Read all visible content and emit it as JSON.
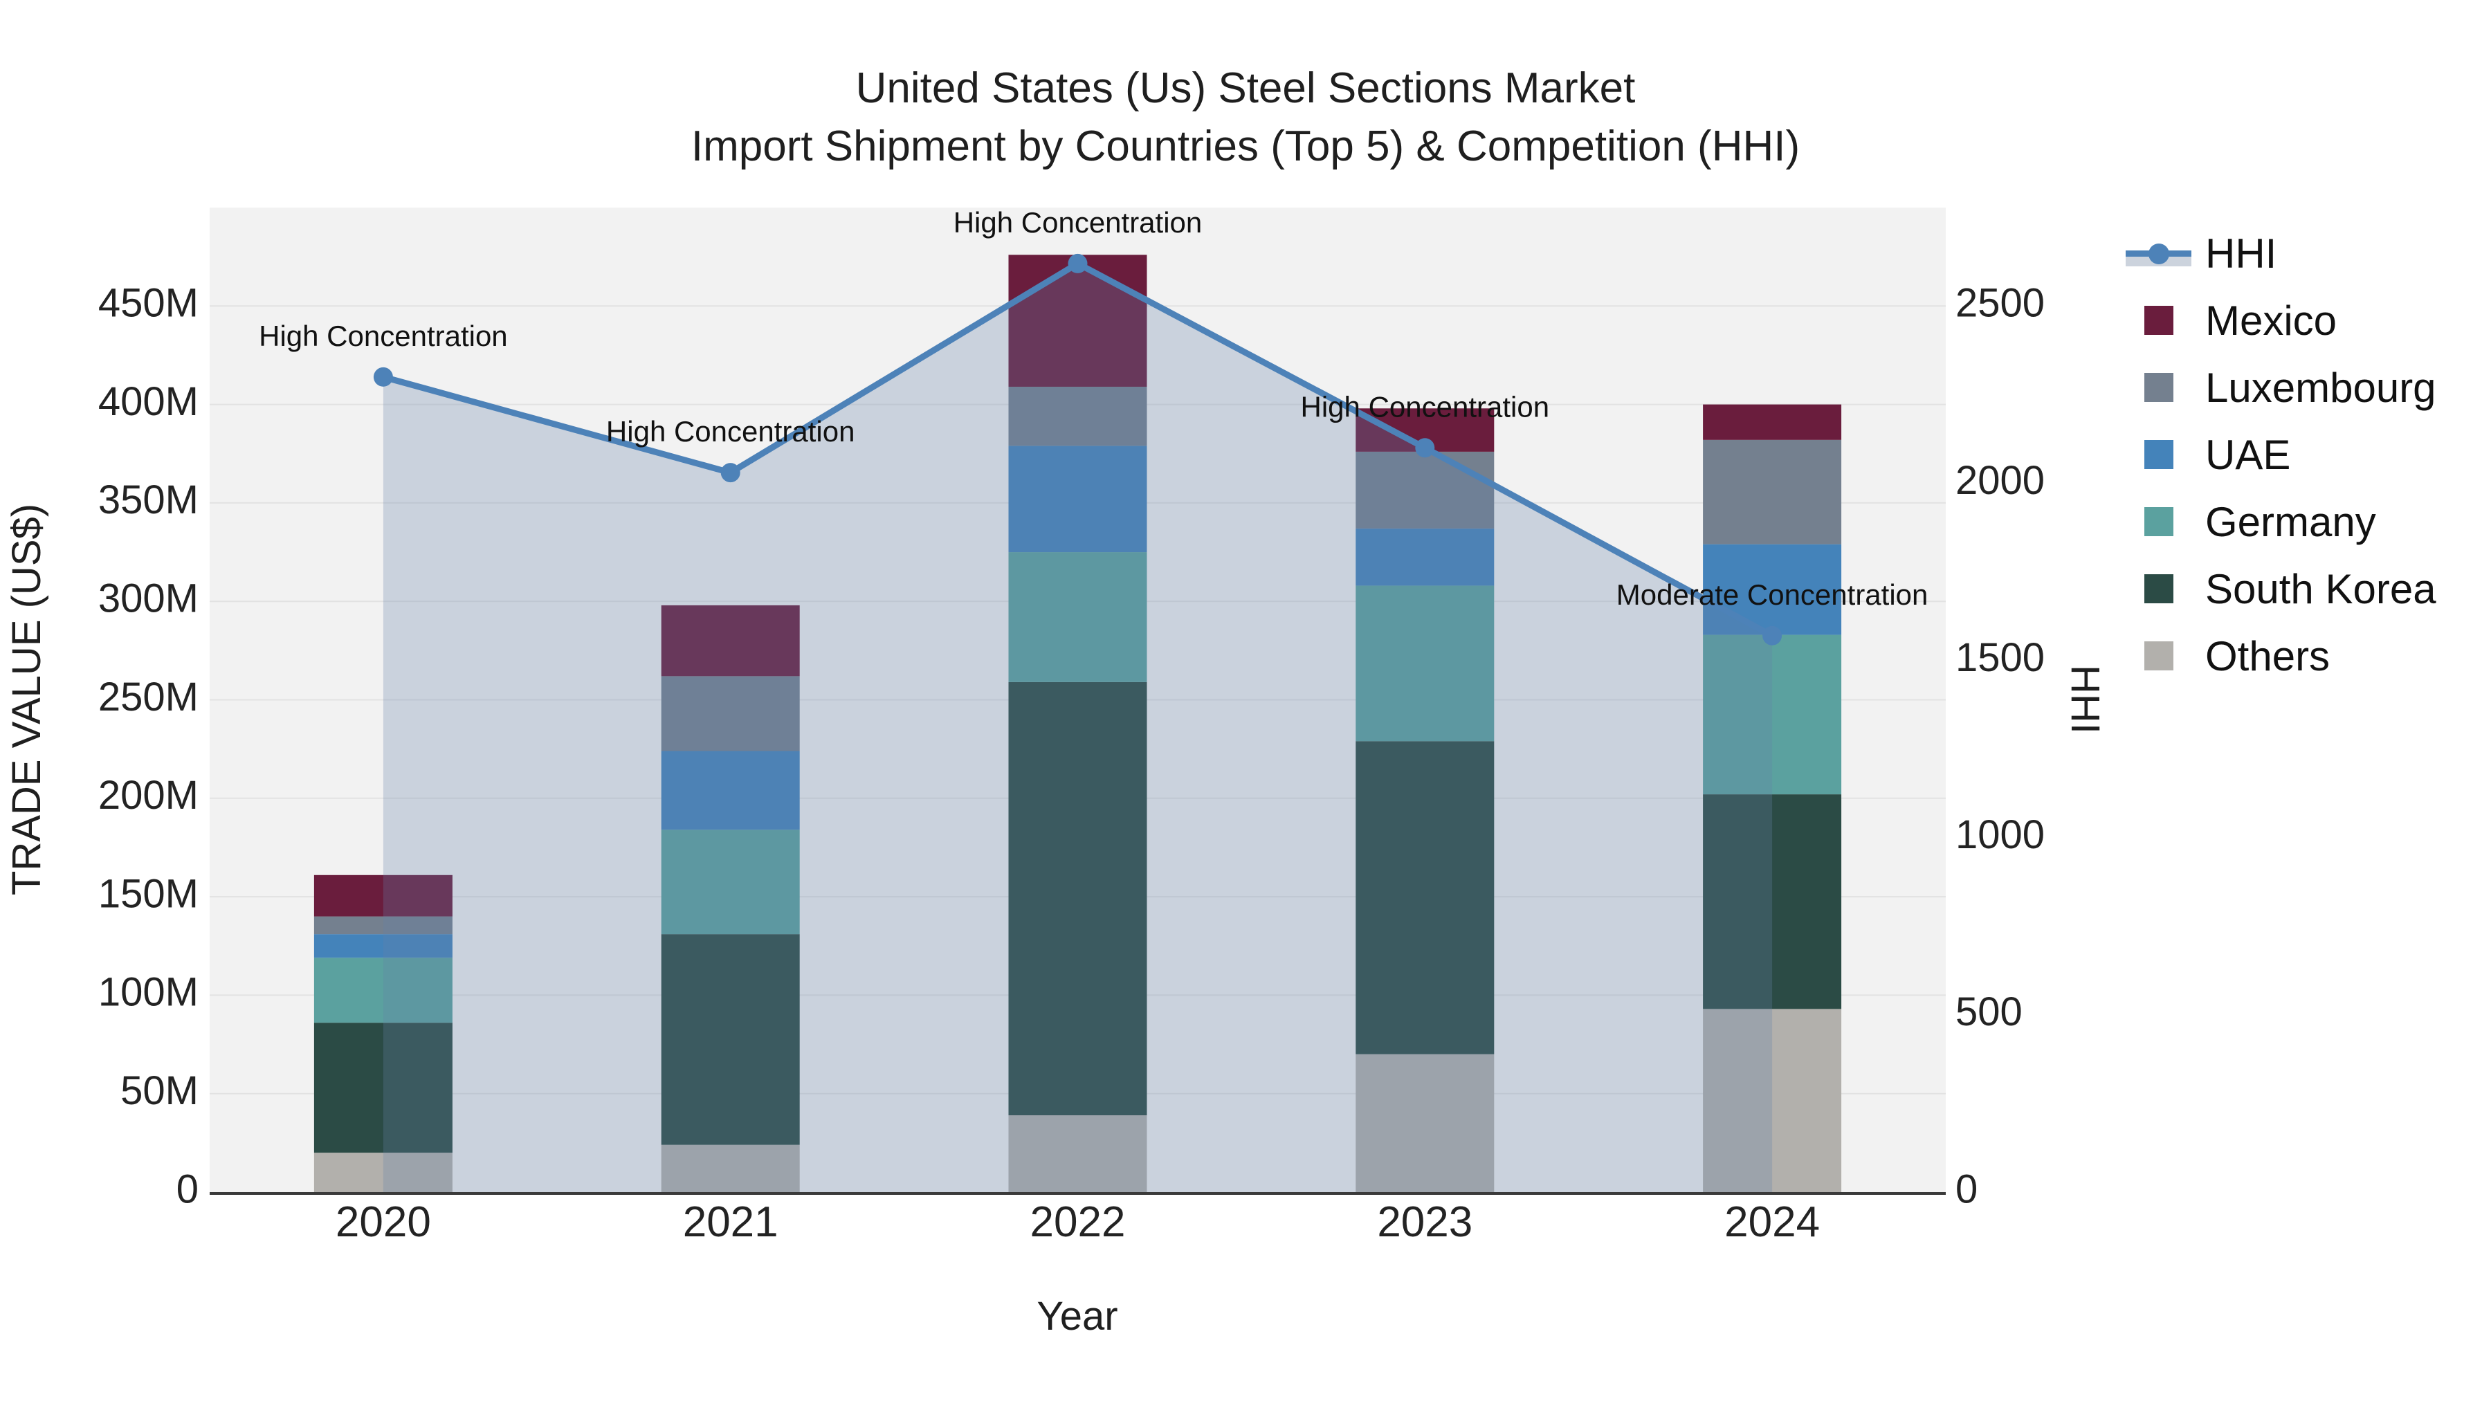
{
  "title": {
    "line1": "United States (Us) Steel Sections Market",
    "line2": "Import Shipment by Countries (Top 5) & Competition (HHI)"
  },
  "legend": {
    "items": [
      {
        "label": "HHI",
        "type": "line",
        "color": "#4d82b8"
      },
      {
        "label": "Mexico",
        "type": "square",
        "color": "#6a1d3d"
      },
      {
        "label": "Luxembourg",
        "type": "square",
        "color": "#74808f"
      },
      {
        "label": "UAE",
        "type": "square",
        "color": "#4483ba"
      },
      {
        "label": "Germany",
        "type": "square",
        "color": "#5ba19f"
      },
      {
        "label": "South Korea",
        "type": "square",
        "color": "#2b4b45"
      },
      {
        "label": "Others",
        "type": "square",
        "color": "#b2b0ac"
      }
    ]
  },
  "colors": {
    "plot_bg": "#f2f2f2",
    "grid": "#e2e2e2",
    "axis_line": "#3a3a3a",
    "area_fill": "rgba(100,130,168,0.28)",
    "hhi_line": "#4d82b8"
  },
  "chart_data": {
    "type": "combo: stacked-bar (left axis) + line-with-area (right axis)",
    "categories": [
      "2020",
      "2021",
      "2022",
      "2023",
      "2024"
    ],
    "value_unit": "USD millions",
    "bar_series_bottom_to_top": [
      {
        "name": "Others",
        "color": "#b2b0ac",
        "values": [
          20,
          24,
          39,
          70,
          93
        ]
      },
      {
        "name": "South Korea",
        "color": "#2b4b45",
        "values": [
          66,
          107,
          220,
          159,
          109
        ]
      },
      {
        "name": "Germany",
        "color": "#5ba19f",
        "values": [
          33,
          53,
          66,
          79,
          81
        ]
      },
      {
        "name": "UAE",
        "color": "#4483ba",
        "values": [
          12,
          40,
          54,
          29,
          46
        ]
      },
      {
        "name": "Luxembourg",
        "color": "#74808f",
        "values": [
          9,
          38,
          30,
          39,
          53
        ]
      },
      {
        "name": "Mexico",
        "color": "#6a1d3d",
        "values": [
          21,
          36,
          67,
          22,
          18
        ]
      }
    ],
    "bar_totals_M": [
      161,
      298,
      476,
      398,
      400
    ],
    "line_series": {
      "name": "HHI",
      "color": "#4d82b8",
      "axis": "right",
      "values": [
        2300,
        2030,
        2620,
        2100,
        1570
      ],
      "area_fill": true
    },
    "annotations": [
      {
        "x": "2020",
        "label": "High Concentration"
      },
      {
        "x": "2021",
        "label": "High Concentration"
      },
      {
        "x": "2022",
        "label": "High Concentration"
      },
      {
        "x": "2023",
        "label": "High Concentration"
      },
      {
        "x": "2024",
        "label": "Moderate Concentration"
      }
    ],
    "left_axis": {
      "label": "TRADE VALUE (US$)",
      "ticks": [
        "0",
        "50M",
        "100M",
        "150M",
        "200M",
        "250M",
        "300M",
        "350M",
        "400M",
        "450M"
      ],
      "tick_values": [
        0,
        50,
        100,
        150,
        200,
        250,
        300,
        350,
        400,
        450
      ],
      "range": [
        0,
        500
      ]
    },
    "right_axis": {
      "label": "HHI",
      "ticks": [
        "0",
        "500",
        "1000",
        "1500",
        "2000",
        "2500"
      ],
      "tick_values": [
        0,
        500,
        1000,
        1500,
        2000,
        2500
      ],
      "range": [
        0,
        2778
      ]
    },
    "x_axis": {
      "label": "Year"
    },
    "grid": true,
    "legend_position": "right"
  }
}
